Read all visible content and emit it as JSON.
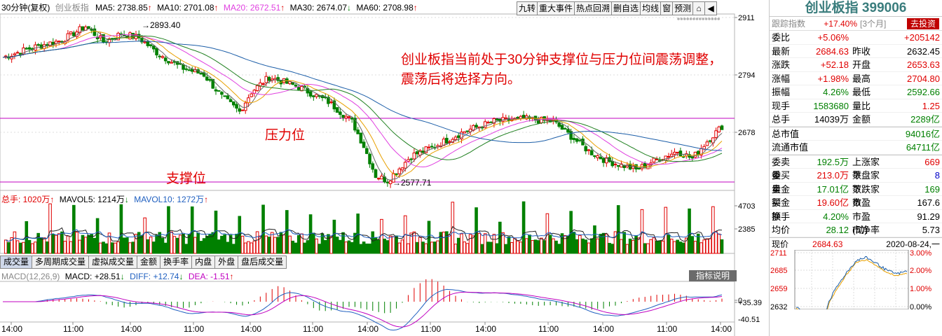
{
  "header": {
    "period": "30分钟(复权)",
    "name": "创业板指",
    "ma5": "MA5: 2738.85",
    "ma5_arrow": "↑",
    "ma10": "MA10: 2701.08",
    "ma10_arrow": "↑",
    "ma20": "MA20: 2672.51",
    "ma20_arrow": "↑",
    "ma30": "MA30: 2674.07",
    "ma30_arrow": "↓",
    "ma60": "MA60: 2708.98",
    "ma60_arrow": "↑"
  },
  "toolbar": [
    "九转",
    "重大事件",
    "热点回溯",
    "删自选",
    "均线",
    "窗",
    "预测"
  ],
  "vol_header": {
    "total": "总手: 1020万",
    "total_arrow": "↑",
    "mavol5": "MAVOL5: 1214万",
    "mavol5_arrow": "↓",
    "mavol10": "MAVOL10: 1272万",
    "mavol10_arrow": "↑"
  },
  "macd_header": {
    "name": "MACD(12,26,9)",
    "macd": "MACD: +28.51",
    "macd_arrow": "↓",
    "diff": "DIFF: +12.74",
    "diff_arrow": "↓",
    "dea": "DEA: -1.51",
    "dea_arrow": "↑",
    "button": "指标说明"
  },
  "annotations": {
    "main_text_1": "创业板指当前处于30分钟支撑位与压力位间震荡调整，",
    "main_text_2": "震荡后将选择方向。",
    "pressure": "压力位",
    "support": "支撑位",
    "high_label": "2893.40",
    "low_label": "2577.71"
  },
  "tabs": [
    "成交量",
    "多周期成交量",
    "虚拟成交量",
    "金额",
    "换手率",
    "内盘",
    "外盘",
    "盘后成交量"
  ],
  "panel": {
    "title": "创业板指 399006",
    "track": {
      "label": "跟踪指数",
      "pct": "+17.40%",
      "period": "[3个月]",
      "btn": "去投资"
    },
    "rows": [
      {
        "l": "委比",
        "v": "+5.06%",
        "vc": "r",
        "l2": "",
        "v2": "+205142",
        "v2c": "r"
      },
      {
        "l": "最新",
        "v": "2684.63",
        "vc": "r",
        "l2": "昨收",
        "v2": "2632.45",
        "v2c": ""
      },
      {
        "l": "涨跌",
        "v": "+52.18",
        "vc": "r",
        "l2": "开盘",
        "v2": "2653.63",
        "v2c": "r"
      },
      {
        "l": "涨幅",
        "v": "+1.98%",
        "vc": "r",
        "l2": "最高",
        "v2": "2704.80",
        "v2c": "r"
      },
      {
        "l": "振幅",
        "v": "4.26%",
        "vc": "g",
        "l2": "最低",
        "v2": "2592.66",
        "v2c": "g"
      },
      {
        "l": "现手",
        "v": "1583680",
        "vc": "g",
        "l2": "量比",
        "v2": "1.25",
        "v2c": "r"
      },
      {
        "l": "总手",
        "v": "14039万",
        "vc": "",
        "l2": "金额",
        "v2": "2289亿",
        "v2c": "g"
      }
    ],
    "rows_single": [
      {
        "l": "总市值",
        "v": "94016亿"
      },
      {
        "l": "流通市值",
        "v": "64711亿"
      }
    ],
    "rows3": [
      {
        "l": "委卖量",
        "v": "192.5万",
        "vc": "g",
        "l2": "上涨家数",
        "v2": "669",
        "v2c": "r"
      },
      {
        "l": "委买量",
        "v": "213.0万",
        "vc": "r",
        "l2": "平盘家数",
        "v2": "8",
        "v2c": "b"
      },
      {
        "l": "卖金额",
        "v": "17.01亿",
        "vc": "g",
        "l2": "下跌家数",
        "v2": "169",
        "v2c": "g"
      },
      {
        "l": "买金额",
        "v": "19.60亿",
        "vc": "r",
        "l2": "市盈",
        "v2": "167.6",
        "v2c": ""
      },
      {
        "l": "换手",
        "v": "4.20%",
        "vc": "g",
        "l2": "市盈(动)",
        "v2": "91.29",
        "v2c": ""
      },
      {
        "l": "均价",
        "v": "28.12",
        "vc": "g",
        "l2": "市净率",
        "v2": "5.73",
        "v2c": ""
      }
    ],
    "mini": {
      "label": "现价",
      "price": "2684.63",
      "date": "2020-08-24,一"
    }
  }
}
